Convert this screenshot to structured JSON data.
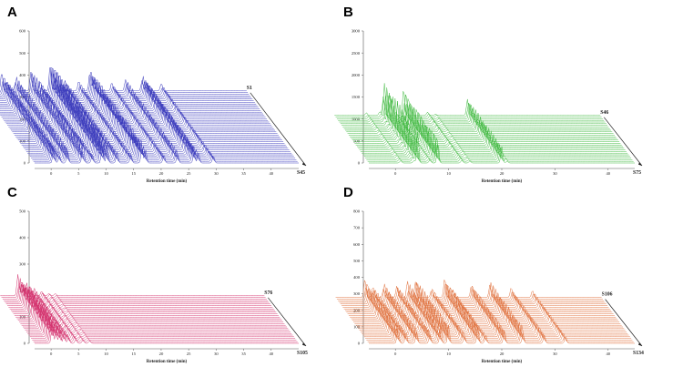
{
  "chart_data": [
    {
      "type": "line",
      "panel": "A",
      "xlabel": "Retention time (min)",
      "x_ticks": [
        "0",
        "5",
        "10",
        "15",
        "20",
        "25",
        "30",
        "35",
        "40"
      ],
      "y_ticks": [
        "0",
        "100",
        "200",
        "300",
        "400",
        "500",
        "600"
      ],
      "first_sample": "S1",
      "last_sample": "S45",
      "n_traces": 45,
      "series_color": "#3b3bbd",
      "peaks": [
        {
          "x": 0.5,
          "h": 0.55
        },
        {
          "x": 1.5,
          "h": 0.32
        },
        {
          "x": 3.0,
          "h": 0.45
        },
        {
          "x": 5.8,
          "h": 0.62
        },
        {
          "x": 7.5,
          "h": 0.28
        },
        {
          "x": 9.3,
          "h": 0.95
        },
        {
          "x": 10.2,
          "h": 0.58
        },
        {
          "x": 12.0,
          "h": 0.32
        },
        {
          "x": 14.5,
          "h": 0.3
        },
        {
          "x": 16.5,
          "h": 0.72
        },
        {
          "x": 17.2,
          "h": 0.4
        },
        {
          "x": 20.5,
          "h": 0.25
        },
        {
          "x": 23.0,
          "h": 0.35
        },
        {
          "x": 26.0,
          "h": 0.48
        },
        {
          "x": 26.8,
          "h": 0.3
        },
        {
          "x": 29.5,
          "h": 0.22
        }
      ]
    },
    {
      "type": "line",
      "panel": "B",
      "xlabel": "Retention time (min)",
      "x_ticks": [
        "0",
        "10",
        "20",
        "30",
        "40"
      ],
      "y_ticks": [
        "0",
        "500",
        "1000",
        "1500",
        "2000",
        "2500",
        "3000"
      ],
      "first_sample": "S46",
      "last_sample": "S75",
      "n_traces": 30,
      "series_color": "#3cb83c",
      "peaks": [
        {
          "x": 1.0,
          "h": 0.08
        },
        {
          "x": 3.5,
          "h": 0.12
        },
        {
          "x": 4.2,
          "h": 1.0
        },
        {
          "x": 6.5,
          "h": 0.1
        },
        {
          "x": 8.0,
          "h": 0.78
        },
        {
          "x": 12.5,
          "h": 0.12
        },
        {
          "x": 14.0,
          "h": 0.06
        },
        {
          "x": 20.0,
          "h": 0.5
        },
        {
          "x": 21.0,
          "h": 0.08
        }
      ]
    },
    {
      "type": "line",
      "panel": "C",
      "xlabel": "Retention time (min)",
      "x_ticks": [
        "0",
        "5",
        "10",
        "15",
        "20",
        "25",
        "30",
        "35",
        "40"
      ],
      "y_ticks": [
        "0",
        "100",
        "200",
        "300",
        "400",
        "500"
      ],
      "first_sample": "S76",
      "last_sample": "S105",
      "n_traces": 30,
      "series_color": "#d4326e",
      "peaks": [
        {
          "x": 0.2,
          "h": 0.62
        },
        {
          "x": 0.9,
          "h": 0.5
        },
        {
          "x": 1.6,
          "h": 0.42
        },
        {
          "x": 2.4,
          "h": 0.3
        },
        {
          "x": 3.2,
          "h": 0.22
        },
        {
          "x": 4.5,
          "h": 0.16
        },
        {
          "x": 5.8,
          "h": 0.1
        },
        {
          "x": 7.0,
          "h": 0.07
        }
      ]
    },
    {
      "type": "line",
      "panel": "D",
      "xlabel": "Retention time (min)",
      "x_ticks": [
        "0",
        "10",
        "20",
        "30",
        "40"
      ],
      "y_ticks": [
        "0",
        "100",
        "200",
        "300",
        "400",
        "500",
        "600",
        "700",
        "800"
      ],
      "first_sample": "S106",
      "last_sample": "S134",
      "n_traces": 29,
      "series_color": "#e0703c",
      "peaks": [
        {
          "x": 0.5,
          "h": 0.55
        },
        {
          "x": 2.0,
          "h": 0.35
        },
        {
          "x": 4.0,
          "h": 0.45
        },
        {
          "x": 6.5,
          "h": 0.38
        },
        {
          "x": 8.5,
          "h": 0.48
        },
        {
          "x": 10.0,
          "h": 0.55
        },
        {
          "x": 13.0,
          "h": 0.32
        },
        {
          "x": 15.5,
          "h": 0.6
        },
        {
          "x": 17.0,
          "h": 0.25
        },
        {
          "x": 20.5,
          "h": 0.45
        },
        {
          "x": 24.0,
          "h": 0.5
        },
        {
          "x": 28.0,
          "h": 0.3
        },
        {
          "x": 32.0,
          "h": 0.22
        }
      ]
    }
  ]
}
